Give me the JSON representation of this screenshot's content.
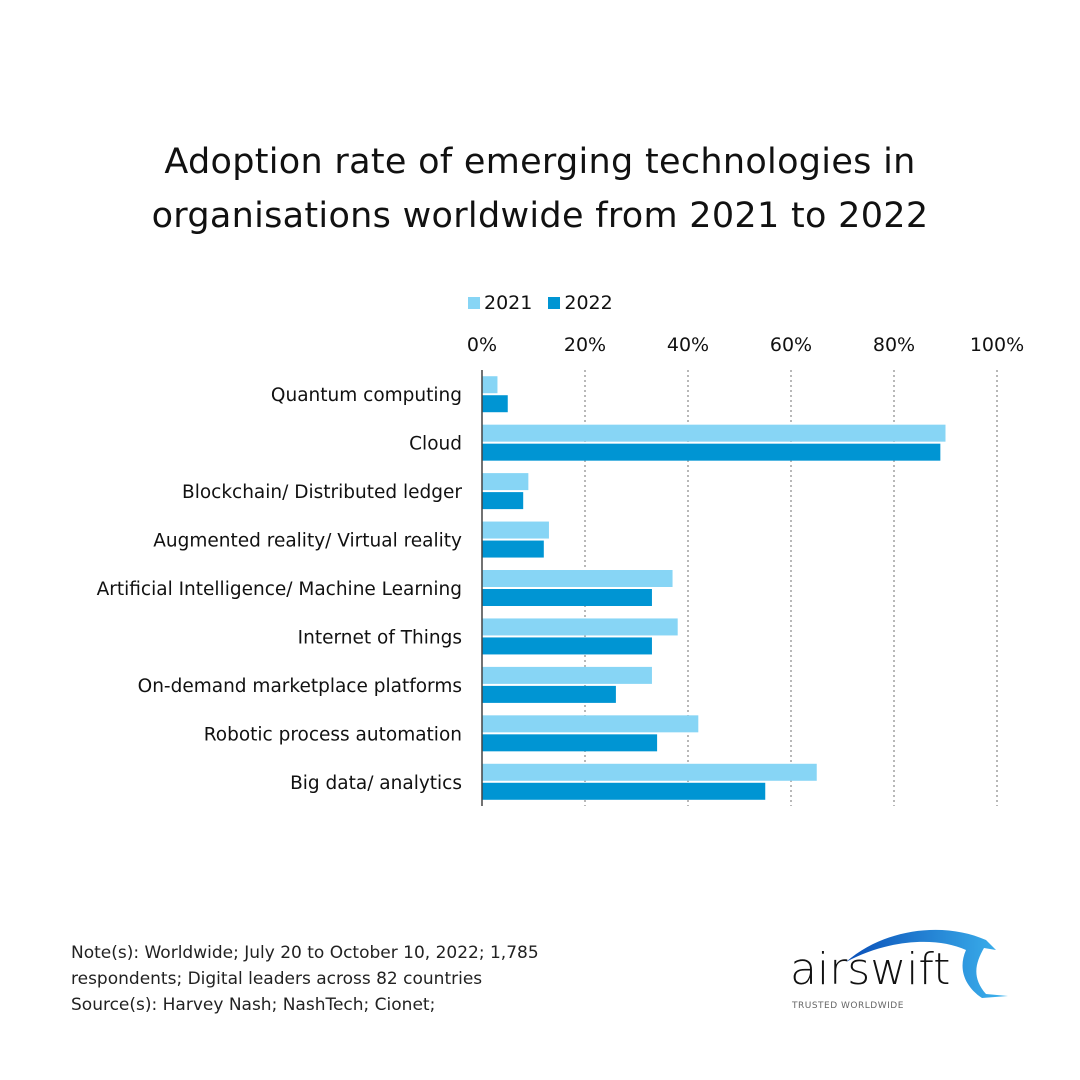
{
  "chart_data": {
    "type": "bar",
    "orientation": "horizontal",
    "title": "Adoption rate of emerging technologies in organisations worldwide from 2021 to 2022",
    "title_lines": [
      "Adoption rate of emerging technologies in",
      "organisations worldwide from 2021 to 2022"
    ],
    "categories": [
      "Quantum computing",
      "Cloud",
      "Blockchain/ Distributed ledger",
      "Augmented reality/ Virtual reality",
      "Artificial Intelligence/ Machine Learning",
      "Internet of Things",
      "On-demand marketplace platforms",
      "Robotic process automation",
      "Big data/ analytics"
    ],
    "series": [
      {
        "name": "2021",
        "color": "#87D5F5",
        "values": [
          3,
          90,
          9,
          13,
          37,
          38,
          33,
          42,
          65
        ]
      },
      {
        "name": "2022",
        "color": "#0095D3",
        "values": [
          5,
          89,
          8,
          12,
          33,
          33,
          26,
          34,
          55
        ]
      }
    ],
    "xlim": [
      0,
      100
    ],
    "x_ticks": [
      "0%",
      "20%",
      "40%",
      "60%",
      "80%",
      "100%"
    ],
    "x_tick_values": [
      0,
      20,
      40,
      60,
      80,
      100
    ],
    "xlabel": "",
    "ylabel": "",
    "grid": "vertical dotted",
    "legend_position": "top"
  },
  "footer": {
    "note_lines": [
      "Note(s): Worldwide; July 20 to October 10, 2022; 1,785",
      "respondents; Digital leaders across 82 countries",
      "Source(s): Harvey Nash; NashTech; Cionet;"
    ]
  },
  "logo": {
    "name": "airswift",
    "tagline": "TRUSTED WORLDWIDE",
    "color": "#0A7FD0"
  }
}
